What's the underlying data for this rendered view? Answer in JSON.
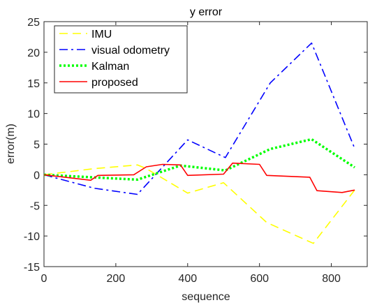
{
  "chart_data": {
    "type": "line",
    "title": "y error",
    "xlabel": "sequence",
    "ylabel": "error(m)",
    "xlim": [
      0,
      900
    ],
    "ylim": [
      -15,
      25
    ],
    "xticks": [
      0,
      200,
      400,
      600,
      800
    ],
    "yticks": [
      -15,
      -10,
      -5,
      0,
      5,
      10,
      15,
      20,
      25
    ],
    "grid": false,
    "legend_position": "top-left",
    "series": [
      {
        "name": "IMU",
        "color": "#ffff00",
        "style": "dashed",
        "x": [
          0,
          140,
          260,
          285,
          400,
          500,
          620,
          750,
          865
        ],
        "y": [
          0,
          1.0,
          1.6,
          1.0,
          -3.0,
          -1.3,
          -7.8,
          -11.2,
          -2.5
        ]
      },
      {
        "name": "visual odometry",
        "color": "#0000ff",
        "style": "dashdot",
        "x": [
          0,
          140,
          260,
          400,
          505,
          630,
          745,
          865
        ],
        "y": [
          0,
          -2.2,
          -3.2,
          5.7,
          2.8,
          15.0,
          21.5,
          4.3
        ]
      },
      {
        "name": "Kalman",
        "color": "#00ff00",
        "style": "dotted",
        "x": [
          0,
          260,
          380,
          505,
          630,
          745,
          865
        ],
        "y": [
          0,
          -0.8,
          1.5,
          0.7,
          4.2,
          5.8,
          1.2
        ]
      },
      {
        "name": "proposed",
        "color": "#ff0000",
        "style": "solid",
        "x": [
          0,
          130,
          150,
          250,
          285,
          330,
          380,
          400,
          500,
          525,
          600,
          620,
          740,
          760,
          830,
          865
        ],
        "y": [
          0,
          -0.9,
          -0.1,
          0.0,
          1.3,
          1.7,
          1.6,
          -0.1,
          0.1,
          1.9,
          1.7,
          -0.1,
          -0.4,
          -2.6,
          -2.9,
          -2.5
        ]
      }
    ]
  }
}
